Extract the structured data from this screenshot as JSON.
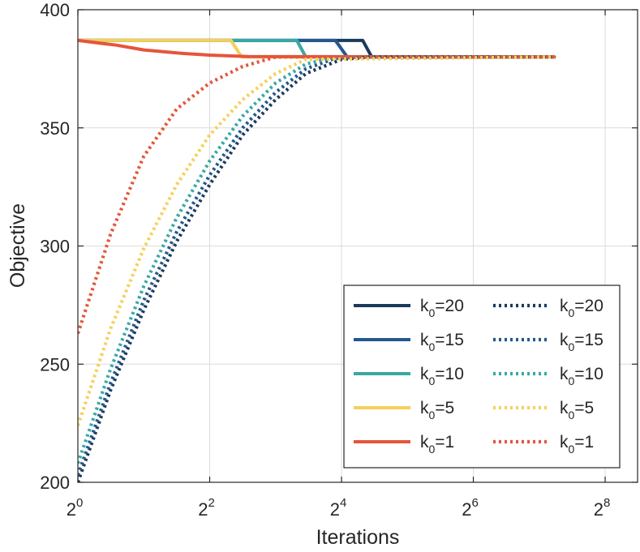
{
  "chart_data": {
    "type": "line",
    "xlabel": "Iterations",
    "ylabel": "Objective",
    "xscale": "log2",
    "xlim": [
      1,
      360
    ],
    "ylim": [
      200,
      400
    ],
    "grid": true,
    "legend_location": "bottom-right",
    "xticks": [
      {
        "base": "2",
        "exp": "0",
        "value": 1
      },
      {
        "base": "2",
        "exp": "2",
        "value": 4
      },
      {
        "base": "2",
        "exp": "4",
        "value": 16
      },
      {
        "base": "2",
        "exp": "6",
        "value": 64
      },
      {
        "base": "2",
        "exp": "8",
        "value": 256
      }
    ],
    "yticks": [
      {
        "label": "200",
        "value": 200
      },
      {
        "label": "250",
        "value": 250
      },
      {
        "label": "300",
        "value": 300
      },
      {
        "label": "350",
        "value": 350
      },
      {
        "label": "400",
        "value": 400
      }
    ],
    "series": [
      {
        "name": "k0=20 solid",
        "legend_main": "k",
        "legend_sub": "0",
        "legend_rest": "=20",
        "color": "#1b3a5c",
        "style": "solid",
        "x": [
          1,
          20,
          22,
          150
        ],
        "y": [
          387,
          387,
          380,
          380
        ]
      },
      {
        "name": "k0=15 solid",
        "legend_main": "k",
        "legend_sub": "0",
        "legend_rest": "=15",
        "color": "#24588d",
        "style": "solid",
        "x": [
          1,
          15,
          17,
          150
        ],
        "y": [
          387,
          387,
          380,
          380
        ]
      },
      {
        "name": "k0=10 solid",
        "legend_main": "k",
        "legend_sub": "0",
        "legend_rest": "=10",
        "color": "#38a8a4",
        "style": "solid",
        "x": [
          1,
          10,
          11,
          150
        ],
        "y": [
          387,
          387,
          380,
          380
        ]
      },
      {
        "name": "k0=5 solid",
        "legend_main": "k",
        "legend_sub": "0",
        "legend_rest": "=5",
        "color": "#f5d05a",
        "style": "solid",
        "x": [
          1,
          5,
          5.6,
          150
        ],
        "y": [
          387,
          387,
          380,
          380
        ]
      },
      {
        "name": "k0=1 solid",
        "legend_main": "k",
        "legend_sub": "0",
        "legend_rest": "=1",
        "color": "#e5553b",
        "style": "solid",
        "x": [
          1,
          1.5,
          2,
          3,
          4,
          6,
          150
        ],
        "y": [
          387,
          385,
          383,
          381.5,
          380.8,
          380.2,
          380
        ]
      },
      {
        "name": "k0=20 dotted",
        "legend_main": "k",
        "legend_sub": "0",
        "legend_rest": "=20",
        "color": "#1b3a5c",
        "style": "dotted",
        "x": [
          1,
          1.41,
          2,
          2.83,
          4,
          5.66,
          8,
          11,
          16,
          22,
          150
        ],
        "y": [
          200,
          239,
          273,
          302,
          326,
          347,
          362,
          373,
          379,
          380,
          380
        ]
      },
      {
        "name": "k0=15 dotted",
        "legend_main": "k",
        "legend_sub": "0",
        "legend_rest": "=15",
        "color": "#24588d",
        "style": "dotted",
        "x": [
          1,
          1.41,
          2,
          2.83,
          4,
          5.66,
          8,
          11,
          15,
          20,
          150
        ],
        "y": [
          203,
          242,
          277,
          306,
          330,
          350,
          365,
          375,
          379.5,
          380,
          380
        ]
      },
      {
        "name": "k0=10 dotted",
        "legend_main": "k",
        "legend_sub": "0",
        "legend_rest": "=10",
        "color": "#38a8a4",
        "style": "dotted",
        "x": [
          1,
          1.41,
          2,
          2.83,
          4,
          5.66,
          8,
          11,
          15,
          150
        ],
        "y": [
          208,
          248,
          283,
          312,
          336,
          355,
          369,
          377,
          380,
          380
        ]
      },
      {
        "name": "k0=5 dotted",
        "legend_main": "k",
        "legend_sub": "0",
        "legend_rest": "=5",
        "color": "#f5d05a",
        "style": "dotted",
        "x": [
          1,
          1.41,
          2,
          2.83,
          4,
          5.66,
          8,
          11,
          150
        ],
        "y": [
          224,
          265,
          299,
          326,
          347,
          362,
          373,
          379,
          380
        ]
      },
      {
        "name": "k0=1 dotted",
        "legend_main": "k",
        "legend_sub": "0",
        "legend_rest": "=1",
        "color": "#e5553b",
        "style": "dotted",
        "x": [
          1,
          1.41,
          2,
          2.83,
          4,
          5.66,
          8,
          150
        ],
        "y": [
          263,
          305,
          338,
          358,
          369,
          376,
          380,
          380
        ]
      }
    ],
    "legend_columns": [
      [
        "k0=20 solid",
        "k0=15 solid",
        "k0=10 solid",
        "k0=5 solid",
        "k0=1 solid"
      ],
      [
        "k0=20 dotted",
        "k0=15 dotted",
        "k0=10 dotted",
        "k0=5 dotted",
        "k0=1 dotted"
      ]
    ]
  }
}
